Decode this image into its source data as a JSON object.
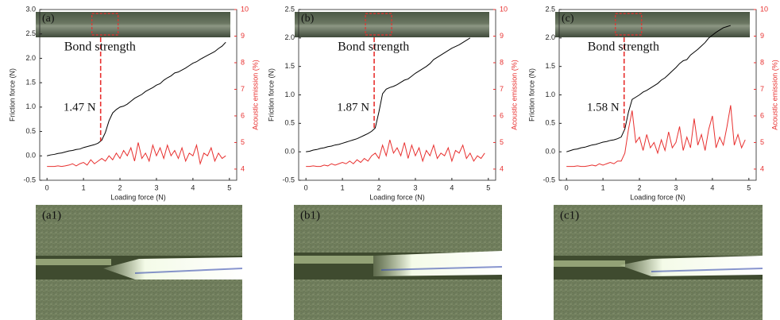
{
  "chart_data": [
    {
      "type": "line",
      "panel": "(a)",
      "annotation": "Bond strength",
      "bond_strength": {
        "value": 1.47,
        "label": "1.47 N"
      },
      "xlabel": "Loading force (N)",
      "ylabel": "Friction force (N)",
      "y2label": "Acoustic emission (%)",
      "xlim": [
        -0.2,
        5.2
      ],
      "xticks": [
        0,
        1,
        2,
        3,
        4,
        5
      ],
      "ylim": [
        -0.5,
        3.0
      ],
      "yticks": [
        -0.5,
        {
          "value": 0,
          "label": "0.0"
        },
        0.5,
        {
          "value": 1,
          "label": "1.0"
        },
        1.5,
        {
          "value": 2,
          "label": "2.0"
        },
        2.5,
        {
          "value": 3,
          "label": "3.0"
        }
      ],
      "y2lim": [
        3.58,
        10
      ],
      "y2ticks": [
        4,
        5,
        6,
        7,
        8,
        9,
        10
      ],
      "x": [
        0,
        0.1,
        0.2,
        0.3,
        0.4,
        0.5,
        0.6,
        0.7,
        0.8,
        0.9,
        1.0,
        1.1,
        1.2,
        1.3,
        1.4,
        1.5,
        1.6,
        1.7,
        1.8,
        1.9,
        2.0,
        2.1,
        2.2,
        2.3,
        2.4,
        2.5,
        2.6,
        2.7,
        2.8,
        2.9,
        3.0,
        3.1,
        3.2,
        3.3,
        3.4,
        3.5,
        3.6,
        3.7,
        3.8,
        3.9,
        4.0,
        4.1,
        4.2,
        4.3,
        4.4,
        4.5,
        4.6,
        4.7,
        4.8,
        4.9,
        5.0
      ],
      "series": [
        {
          "color": "#000000",
          "values": [
            0.0,
            0.02,
            0.03,
            0.05,
            0.06,
            0.08,
            0.1,
            0.11,
            0.13,
            0.14,
            0.17,
            0.19,
            0.21,
            0.23,
            0.26,
            0.32,
            0.48,
            0.72,
            0.88,
            0.95,
            1.0,
            1.02,
            1.06,
            1.12,
            1.18,
            1.22,
            1.26,
            1.32,
            1.36,
            1.4,
            1.45,
            1.48,
            1.55,
            1.6,
            1.64,
            1.7,
            1.72,
            1.76,
            1.8,
            1.85,
            1.9,
            1.93,
            1.98,
            2.02,
            2.06,
            2.1,
            2.14,
            2.2,
            2.25,
            2.33,
            null
          ]
        },
        {
          "color": "#e8302f",
          "axis": "y2",
          "values": [
            4.1,
            4.1,
            4.1,
            4.12,
            4.1,
            4.12,
            4.15,
            4.2,
            4.12,
            4.2,
            4.25,
            4.15,
            4.35,
            4.2,
            4.3,
            4.4,
            4.3,
            4.5,
            4.35,
            4.6,
            4.4,
            4.7,
            4.5,
            4.8,
            4.3,
            5.0,
            4.4,
            4.6,
            4.3,
            4.9,
            4.5,
            4.8,
            4.4,
            4.9,
            4.5,
            4.7,
            4.4,
            4.8,
            4.3,
            4.6,
            4.5,
            4.9,
            4.2,
            4.6,
            4.5,
            4.8,
            4.3,
            4.6,
            4.4,
            4.5,
            null
          ]
        }
      ]
    },
    {
      "type": "line",
      "panel": "(b)",
      "annotation": "Bond strength",
      "bond_strength": {
        "value": 1.87,
        "label": "1.87 N"
      },
      "xlabel": "Loading force (N)",
      "ylabel": "Friction force (N)",
      "y2label": "Acoustic emission (%)",
      "xlim": [
        -0.2,
        5.2
      ],
      "xticks": [
        0,
        1,
        2,
        3,
        4,
        5
      ],
      "ylim": [
        -0.5,
        2.5
      ],
      "yticks": [
        -0.5,
        {
          "value": 0,
          "label": "0.0"
        },
        0.5,
        {
          "value": 1,
          "label": "1.0"
        },
        1.5,
        {
          "value": 2,
          "label": "2.0"
        },
        2.5
      ],
      "y2lim": [
        3.58,
        10
      ],
      "y2ticks": [
        4,
        5,
        6,
        7,
        8,
        9,
        10
      ],
      "x": [
        0,
        0.1,
        0.2,
        0.3,
        0.4,
        0.5,
        0.6,
        0.7,
        0.8,
        0.9,
        1.0,
        1.1,
        1.2,
        1.3,
        1.4,
        1.5,
        1.6,
        1.7,
        1.8,
        1.9,
        2.0,
        2.1,
        2.2,
        2.3,
        2.4,
        2.5,
        2.6,
        2.7,
        2.8,
        2.9,
        3.0,
        3.1,
        3.2,
        3.3,
        3.4,
        3.5,
        3.6,
        3.7,
        3.8,
        3.9,
        4.0,
        4.1,
        4.2,
        4.3,
        4.4,
        4.5,
        4.6,
        4.7,
        4.8,
        4.9,
        5.0
      ],
      "series": [
        {
          "color": "#000000",
          "values": [
            0.0,
            0.01,
            0.03,
            0.04,
            0.06,
            0.07,
            0.09,
            0.1,
            0.12,
            0.13,
            0.15,
            0.17,
            0.19,
            0.21,
            0.23,
            0.26,
            0.29,
            0.32,
            0.36,
            0.42,
            0.7,
            1.02,
            1.1,
            1.13,
            1.15,
            1.18,
            1.22,
            1.26,
            1.28,
            1.33,
            1.38,
            1.42,
            1.46,
            1.5,
            1.55,
            1.62,
            1.66,
            1.7,
            1.74,
            1.78,
            1.82,
            1.85,
            1.88,
            1.92,
            1.96,
            2.0,
            null,
            null,
            null,
            null,
            null
          ]
        },
        {
          "color": "#e8302f",
          "axis": "y2",
          "values": [
            4.1,
            4.1,
            4.12,
            4.1,
            4.1,
            4.15,
            4.12,
            4.2,
            4.15,
            4.2,
            4.25,
            4.2,
            4.3,
            4.2,
            4.35,
            4.25,
            4.4,
            4.3,
            4.5,
            4.6,
            4.4,
            4.9,
            4.5,
            5.1,
            4.6,
            4.8,
            4.5,
            5.0,
            4.4,
            4.9,
            4.5,
            4.8,
            4.3,
            4.7,
            4.5,
            4.9,
            4.4,
            4.6,
            4.5,
            4.8,
            4.3,
            4.7,
            4.6,
            4.9,
            4.4,
            4.6,
            4.3,
            4.5,
            4.4,
            4.6,
            null
          ]
        }
      ]
    },
    {
      "type": "line",
      "panel": "(c)",
      "annotation": "Bond strength",
      "bond_strength": {
        "value": 1.58,
        "label": "1.58 N"
      },
      "xlabel": "Loading force (N)",
      "ylabel": "Friction force (N)",
      "y2label": "Acoustic emission (%)",
      "xlim": [
        -0.2,
        5.2
      ],
      "xticks": [
        0,
        1,
        2,
        3,
        4,
        5
      ],
      "ylim": [
        -0.5,
        2.5
      ],
      "yticks": [
        -0.5,
        {
          "value": 0,
          "label": "0.0"
        },
        0.5,
        {
          "value": 1,
          "label": "1.0"
        },
        1.5,
        {
          "value": 2,
          "label": "2.0"
        },
        2.5
      ],
      "y2lim": [
        3.58,
        10
      ],
      "y2ticks": [
        4,
        5,
        6,
        7,
        8,
        9,
        10
      ],
      "x": [
        0,
        0.1,
        0.2,
        0.3,
        0.4,
        0.5,
        0.6,
        0.7,
        0.8,
        0.9,
        1.0,
        1.1,
        1.2,
        1.3,
        1.4,
        1.5,
        1.6,
        1.7,
        1.8,
        1.9,
        2.0,
        2.1,
        2.2,
        2.3,
        2.4,
        2.5,
        2.6,
        2.7,
        2.8,
        2.9,
        3.0,
        3.1,
        3.2,
        3.3,
        3.4,
        3.5,
        3.6,
        3.7,
        3.8,
        3.9,
        4.0,
        4.1,
        4.2,
        4.3,
        4.4,
        4.5,
        4.6,
        4.7,
        4.8,
        4.9,
        5.0
      ],
      "series": [
        {
          "color": "#000000",
          "values": [
            0.0,
            0.02,
            0.04,
            0.05,
            0.07,
            0.08,
            0.1,
            0.12,
            0.13,
            0.15,
            0.17,
            0.18,
            0.2,
            0.21,
            0.23,
            0.26,
            0.4,
            0.7,
            0.92,
            0.96,
            1.0,
            1.05,
            1.08,
            1.12,
            1.16,
            1.2,
            1.26,
            1.3,
            1.36,
            1.42,
            1.48,
            1.55,
            1.6,
            1.62,
            1.7,
            1.75,
            1.8,
            1.86,
            1.92,
            2.0,
            2.05,
            2.1,
            2.14,
            2.18,
            2.2,
            2.22,
            null,
            null,
            null,
            null,
            null
          ]
        },
        {
          "color": "#e8302f",
          "axis": "y2",
          "values": [
            4.1,
            4.1,
            4.1,
            4.12,
            4.1,
            4.1,
            4.12,
            4.15,
            4.12,
            4.2,
            4.15,
            4.2,
            4.25,
            4.2,
            4.3,
            4.3,
            4.6,
            5.5,
            6.2,
            5.0,
            5.2,
            4.7,
            5.3,
            4.8,
            5.0,
            4.6,
            5.1,
            4.7,
            5.4,
            4.8,
            5.0,
            5.6,
            4.7,
            5.2,
            4.8,
            5.9,
            4.9,
            5.3,
            4.7,
            5.5,
            6.0,
            4.8,
            5.2,
            4.9,
            5.6,
            6.4,
            4.9,
            5.3,
            4.8,
            5.1,
            null
          ]
        }
      ]
    }
  ],
  "images": [
    {
      "label": "(a1)"
    },
    {
      "label": "(b1)"
    },
    {
      "label": "(c1)"
    }
  ]
}
